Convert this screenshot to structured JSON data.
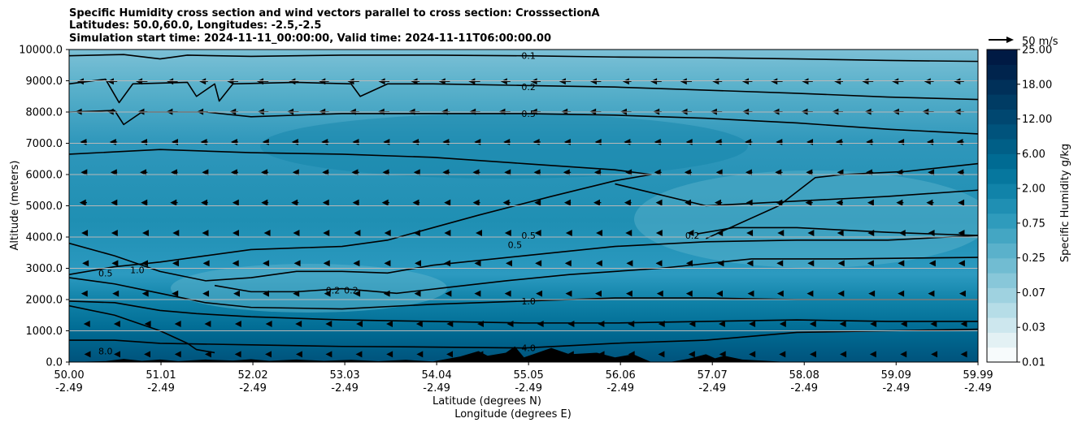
{
  "titles": {
    "line1": "Specific Humidity cross section and wind vectors parallel to cross section: CrosssectionA",
    "line2": "Latitudes: 50.0,60.0, Longitudes: -2.5,-2.5",
    "line3": "Simulation start time: 2024-11-11_00:00:00, Valid time: 2024-11-11T06:00:00.00"
  },
  "chart_data": {
    "type": "heatmap",
    "ylabel": "Altitude (meters)",
    "xlabel_lat": "Latitude (degrees N)",
    "xlabel_lon": "Longitude (degrees E)",
    "ylim": [
      0,
      10000
    ],
    "xlim": [
      50.0,
      59.99
    ],
    "y_ticks": [
      "0.0",
      "1000.0",
      "2000.0",
      "3000.0",
      "4000.0",
      "5000.0",
      "6000.0",
      "7000.0",
      "8000.0",
      "9000.0",
      "10000.0"
    ],
    "y_tick_values": [
      0,
      1000,
      2000,
      3000,
      4000,
      5000,
      6000,
      7000,
      8000,
      9000,
      10000
    ],
    "x_ticks": [
      {
        "lat": "50.00",
        "lon": "-2.49",
        "value": 50.0
      },
      {
        "lat": "51.01",
        "lon": "-2.49",
        "value": 51.01
      },
      {
        "lat": "52.02",
        "lon": "-2.49",
        "value": 52.02
      },
      {
        "lat": "53.03",
        "lon": "-2.49",
        "value": 53.03
      },
      {
        "lat": "54.04",
        "lon": "-2.49",
        "value": 54.04
      },
      {
        "lat": "55.05",
        "lon": "-2.49",
        "value": 55.05
      },
      {
        "lat": "56.06",
        "lon": "-2.49",
        "value": 56.06
      },
      {
        "lat": "57.07",
        "lon": "-2.49",
        "value": 57.07
      },
      {
        "lat": "58.08",
        "lon": "-2.49",
        "value": 58.08
      },
      {
        "lat": "59.09",
        "lon": "-2.49",
        "value": 59.09
      },
      {
        "lat": "59.99",
        "lon": "-2.49",
        "value": 59.99
      }
    ],
    "grid": "horizontal",
    "colorbar": {
      "label": "Specific Humidity g/kg",
      "ticks": [
        "0.01",
        "0.03",
        "0.07",
        "0.25",
        "0.75",
        "2.00",
        "6.00",
        "12.00",
        "18.00",
        "25.00"
      ],
      "colors": [
        "#f7fbfc",
        "#e3f1f4",
        "#cde7ee",
        "#b6dde7",
        "#9fd2e0",
        "#88c7d9",
        "#71bcd2",
        "#5ab1cb",
        "#44a6c3",
        "#2f9bbc",
        "#1f8fb3",
        "#1183a9",
        "#06779e",
        "#006b93",
        "#005f87",
        "#00537c",
        "#004770",
        "#003c64",
        "#003059",
        "#00244d",
        "#001a44"
      ]
    },
    "quiver_key": "50 m/s",
    "contour_labels": [
      {
        "text": "0.1",
        "lat": 55.05,
        "alt": 9800
      },
      {
        "text": "0.2",
        "lat": 55.05,
        "alt": 8800
      },
      {
        "text": "0.5",
        "lat": 55.05,
        "alt": 7950
      },
      {
        "text": "0.5",
        "lat": 54.9,
        "alt": 3750
      },
      {
        "text": "0.5",
        "lat": 55.05,
        "alt": 4050
      },
      {
        "text": "0.2",
        "lat": 56.85,
        "alt": 4050
      },
      {
        "text": "0.5",
        "lat": 50.4,
        "alt": 2850
      },
      {
        "text": "1.0",
        "lat": 50.75,
        "alt": 2950
      },
      {
        "text": "0.2",
        "lat": 52.9,
        "alt": 2300
      },
      {
        "text": "0.2",
        "lat": 53.1,
        "alt": 2300
      },
      {
        "text": "1.0",
        "lat": 55.05,
        "alt": 1950
      },
      {
        "text": "4.0",
        "lat": 55.05,
        "alt": 450
      },
      {
        "text": "8.0",
        "lat": 50.4,
        "alt": 350
      }
    ],
    "contour_lines": [
      {
        "value": "0.1",
        "points": [
          [
            50.0,
            9800
          ],
          [
            50.6,
            9840
          ],
          [
            51.0,
            9700
          ],
          [
            51.3,
            9820
          ],
          [
            52.0,
            9780
          ],
          [
            53.0,
            9820
          ],
          [
            54.0,
            9820
          ],
          [
            55.0,
            9800
          ],
          [
            56.0,
            9760
          ],
          [
            57.0,
            9740
          ],
          [
            58.0,
            9700
          ],
          [
            59.0,
            9650
          ],
          [
            59.99,
            9620
          ]
        ]
      },
      {
        "value": "0.2",
        "points": [
          [
            50.0,
            8900
          ],
          [
            50.4,
            9050
          ],
          [
            50.55,
            8300
          ],
          [
            50.7,
            8900
          ],
          [
            51.3,
            8950
          ],
          [
            51.4,
            8500
          ],
          [
            51.6,
            8900
          ],
          [
            51.65,
            8350
          ],
          [
            51.8,
            8900
          ],
          [
            52.5,
            8950
          ],
          [
            53.1,
            8900
          ],
          [
            53.2,
            8500
          ],
          [
            53.5,
            8900
          ],
          [
            54.0,
            8900
          ],
          [
            55.0,
            8850
          ],
          [
            56.0,
            8800
          ],
          [
            57.0,
            8700
          ],
          [
            58.0,
            8600
          ],
          [
            59.0,
            8480
          ],
          [
            59.99,
            8400
          ]
        ]
      },
      {
        "value": "0.5",
        "points": [
          [
            50.0,
            8000
          ],
          [
            50.5,
            8050
          ],
          [
            50.6,
            7600
          ],
          [
            50.8,
            8000
          ],
          [
            51.5,
            8000
          ],
          [
            52.0,
            7850
          ],
          [
            53.0,
            7950
          ],
          [
            54.0,
            7950
          ],
          [
            55.0,
            7950
          ],
          [
            56.0,
            7900
          ],
          [
            57.0,
            7800
          ],
          [
            58.0,
            7650
          ],
          [
            59.0,
            7450
          ],
          [
            59.99,
            7300
          ]
        ]
      },
      {
        "value": "0.5",
        "points": [
          [
            50.0,
            6650
          ],
          [
            51.0,
            6800
          ],
          [
            52.0,
            6700
          ],
          [
            53.0,
            6650
          ],
          [
            54.0,
            6550
          ],
          [
            55.0,
            6350
          ],
          [
            56.0,
            6150
          ],
          [
            56.4,
            6000
          ],
          [
            56.0,
            5800
          ],
          [
            55.3,
            5300
          ],
          [
            54.5,
            4700
          ],
          [
            54.0,
            4300
          ],
          [
            53.5,
            3900
          ],
          [
            53.0,
            3700
          ],
          [
            52.5,
            3650
          ],
          [
            52.0,
            3600
          ],
          [
            51.5,
            3400
          ],
          [
            51.0,
            3200
          ],
          [
            50.5,
            3050
          ],
          [
            50.0,
            2800
          ]
        ]
      },
      {
        "value": "0.2",
        "points": [
          [
            56.9,
            4100
          ],
          [
            57.3,
            4300
          ],
          [
            58.0,
            4300
          ],
          [
            59.0,
            4150
          ],
          [
            59.99,
            4050
          ]
        ]
      },
      {
        "value": "0.2",
        "points": [
          [
            57.0,
            3950
          ],
          [
            57.8,
            5000
          ],
          [
            58.2,
            5900
          ],
          [
            58.5,
            6000
          ],
          [
            59.2,
            6100
          ],
          [
            59.99,
            6350
          ]
        ]
      },
      {
        "value": "0.2",
        "points": [
          [
            56.0,
            5700
          ],
          [
            57.0,
            5000
          ],
          [
            58.0,
            5150
          ],
          [
            59.0,
            5300
          ],
          [
            59.99,
            5500
          ]
        ]
      },
      {
        "value": "0.2",
        "points": [
          [
            51.6,
            2450
          ],
          [
            52.0,
            2250
          ],
          [
            52.5,
            2250
          ],
          [
            53.0,
            2350
          ],
          [
            53.6,
            2200
          ],
          [
            54.2,
            2400
          ],
          [
            54.8,
            2600
          ],
          [
            55.5,
            2800
          ],
          [
            56.5,
            3000
          ],
          [
            57.5,
            3300
          ],
          [
            58.5,
            3300
          ],
          [
            59.99,
            3350
          ]
        ]
      },
      {
        "value": "1.0",
        "points": [
          [
            50.0,
            3800
          ],
          [
            50.5,
            3400
          ],
          [
            51.0,
            2900
          ],
          [
            51.5,
            2600
          ],
          [
            52.0,
            2700
          ],
          [
            52.5,
            2900
          ],
          [
            53.0,
            2900
          ],
          [
            53.5,
            2850
          ],
          [
            54.0,
            3100
          ],
          [
            55.0,
            3400
          ],
          [
            56.0,
            3700
          ],
          [
            57.0,
            3850
          ],
          [
            58.0,
            3900
          ],
          [
            59.0,
            3900
          ],
          [
            59.99,
            4050
          ]
        ]
      },
      {
        "value": "1.0",
        "points": [
          [
            50.0,
            2700
          ],
          [
            50.5,
            2500
          ],
          [
            51.0,
            2200
          ],
          [
            51.5,
            1900
          ],
          [
            52.0,
            1750
          ],
          [
            53.0,
            1700
          ],
          [
            54.0,
            1850
          ],
          [
            55.0,
            1950
          ],
          [
            56.0,
            2050
          ],
          [
            57.0,
            2050
          ],
          [
            58.0,
            2000
          ],
          [
            59.0,
            2000
          ],
          [
            59.99,
            2000
          ]
        ]
      },
      {
        "value": "2.0",
        "points": [
          [
            50.0,
            1950
          ],
          [
            50.5,
            1900
          ],
          [
            51.0,
            1650
          ],
          [
            51.4,
            1550
          ],
          [
            52.0,
            1450
          ],
          [
            53.0,
            1350
          ],
          [
            54.0,
            1300
          ],
          [
            55.0,
            1250
          ],
          [
            56.0,
            1250
          ],
          [
            57.0,
            1300
          ],
          [
            58.0,
            1350
          ],
          [
            59.0,
            1300
          ],
          [
            59.99,
            1300
          ]
        ]
      },
      {
        "value": "4.0",
        "points": [
          [
            50.0,
            700
          ],
          [
            50.5,
            700
          ],
          [
            51.0,
            600
          ],
          [
            52.0,
            550
          ],
          [
            53.0,
            500
          ],
          [
            54.0,
            480
          ],
          [
            55.0,
            450
          ],
          [
            56.0,
            600
          ],
          [
            57.0,
            700
          ],
          [
            58.0,
            950
          ],
          [
            59.0,
            1000
          ],
          [
            59.99,
            1050
          ]
        ]
      },
      {
        "value": "8.0",
        "points": [
          [
            50.0,
            1800
          ],
          [
            50.5,
            1500
          ],
          [
            51.0,
            1000
          ],
          [
            51.3,
            600
          ],
          [
            51.4,
            400
          ],
          [
            51.6,
            300
          ]
        ]
      }
    ]
  }
}
